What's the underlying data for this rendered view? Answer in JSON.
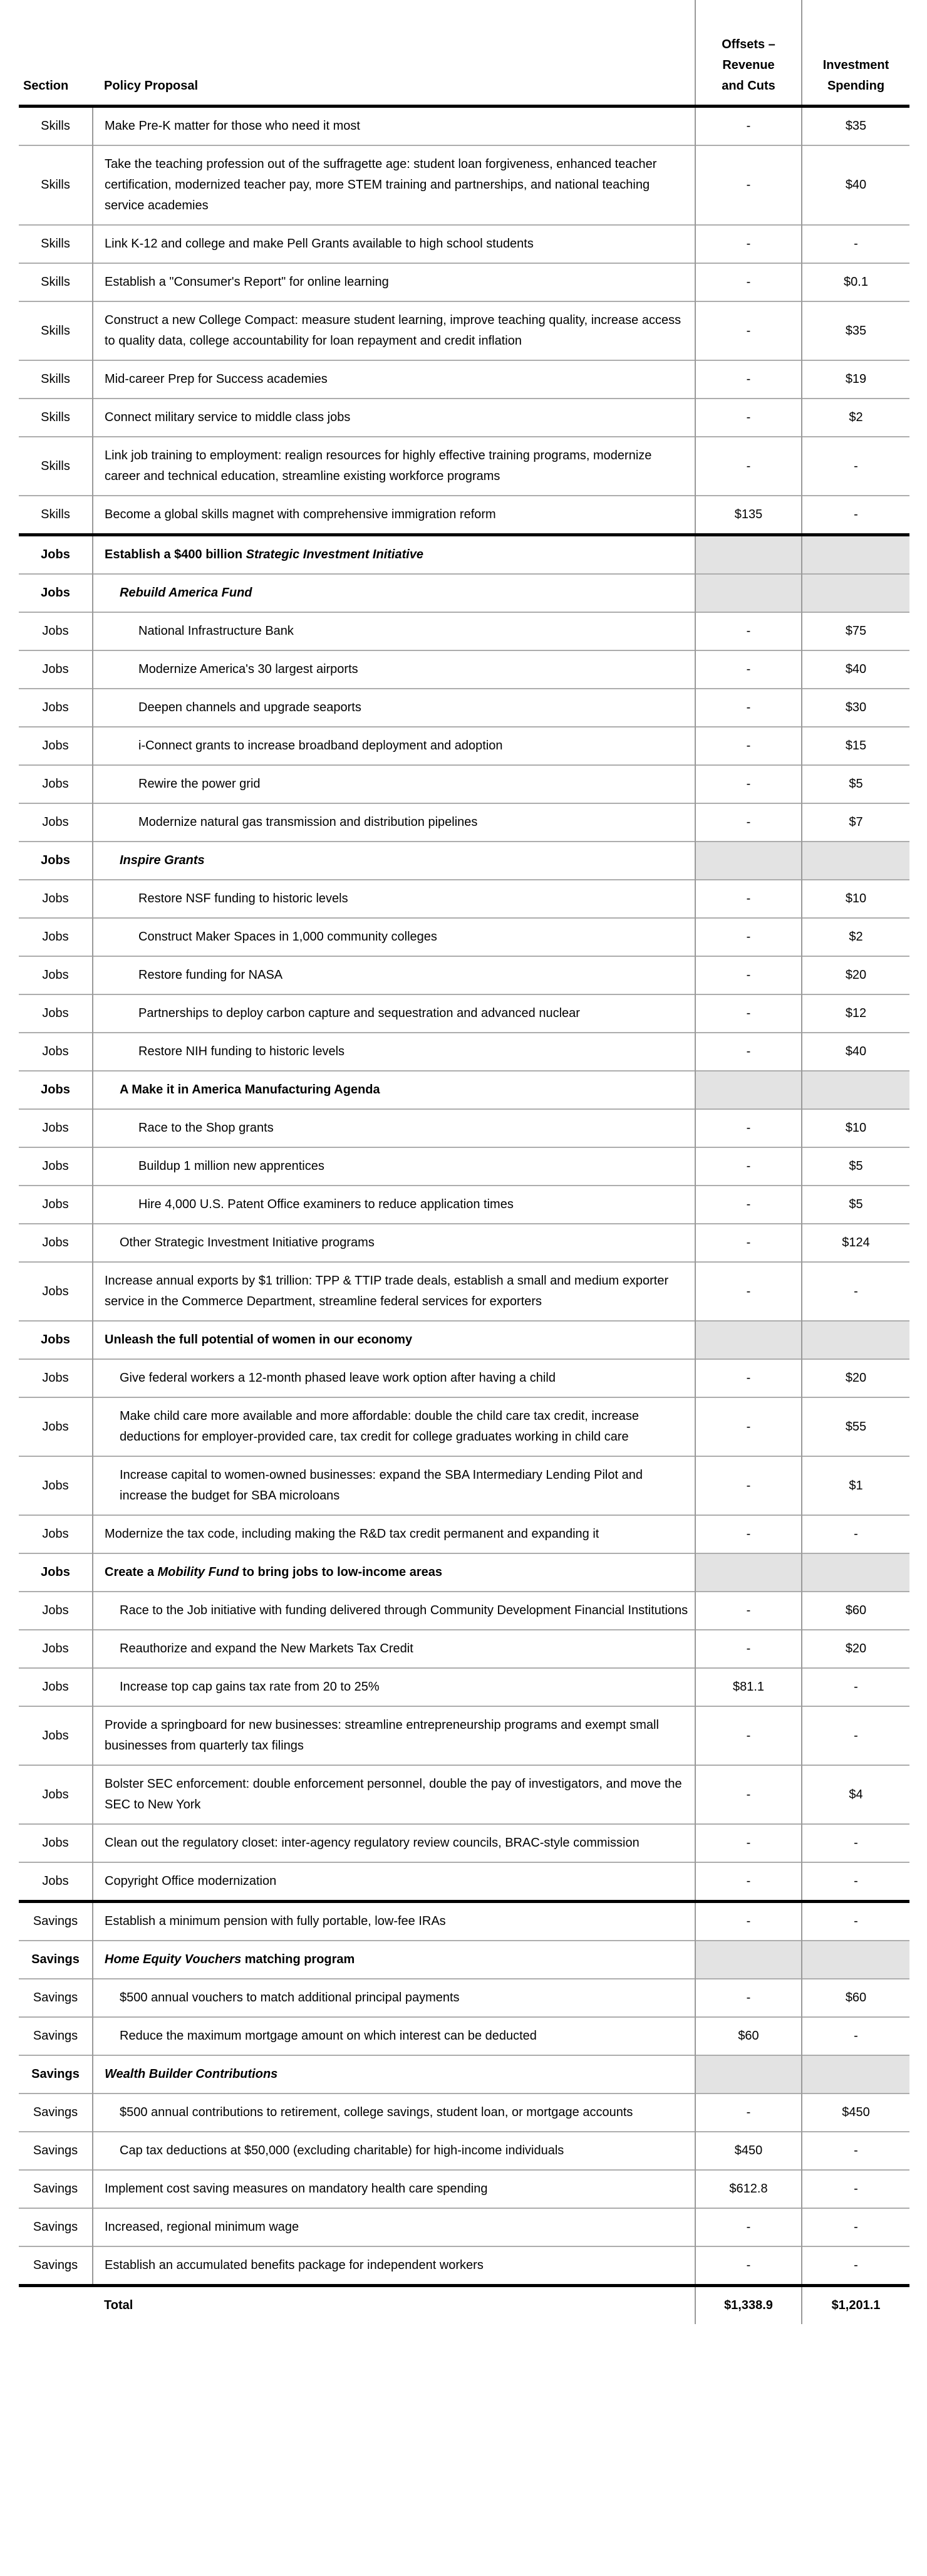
{
  "colors": {
    "section_divider": "#000000",
    "row_divider": "#adadad",
    "column_divider": "#999999",
    "shaded_cell": "#e3e3e3",
    "text": "#000000",
    "background": "#ffffff"
  },
  "table": {
    "header": {
      "section": "Section",
      "proposal": "Policy Proposal",
      "offsets": "Offsets –\nRevenue\nand Cuts",
      "investment": "Investment\nSpending"
    },
    "rows": [
      {
        "sec": "Skills",
        "p": [
          {
            "t": "Make Pre-K matter for those who need it most"
          }
        ],
        "off": "-",
        "inv": "$35",
        "ind": 0
      },
      {
        "sec": "Skills",
        "p": [
          {
            "t": "Take the teaching profession out of the suffragette age: student loan forgiveness, enhanced teacher certification, modernized teacher pay, more STEM training and partnerships, and national teaching service academies"
          }
        ],
        "off": "-",
        "inv": "$40",
        "ind": 0
      },
      {
        "sec": "Skills",
        "p": [
          {
            "t": "Link K-12 and college and make Pell Grants available to high school students"
          }
        ],
        "off": "-",
        "inv": "-",
        "ind": 0
      },
      {
        "sec": "Skills",
        "p": [
          {
            "t": "Establish a \"Consumer's Report\" for online learning"
          }
        ],
        "off": "-",
        "inv": "$0.1",
        "ind": 0
      },
      {
        "sec": "Skills",
        "p": [
          {
            "t": "Construct a new College Compact: measure student learning, improve teaching quality, increase access to quality data, college accountability for loan repayment and credit inflation"
          }
        ],
        "off": "-",
        "inv": "$35",
        "ind": 0
      },
      {
        "sec": "Skills",
        "p": [
          {
            "t": "Mid-career Prep for Success academies"
          }
        ],
        "off": "-",
        "inv": "$19",
        "ind": 0
      },
      {
        "sec": "Skills",
        "p": [
          {
            "t": "Connect military service to middle class jobs"
          }
        ],
        "off": "-",
        "inv": "$2",
        "ind": 0
      },
      {
        "sec": "Skills",
        "p": [
          {
            "t": "Link job training to employment: realign resources for highly effective training programs, modernize career and technical education, streamline existing workforce programs"
          }
        ],
        "off": "-",
        "inv": "-",
        "ind": 0
      },
      {
        "sec": "Skills",
        "p": [
          {
            "t": "Become a global skills magnet with comprehensive immigration reform"
          }
        ],
        "off": "$135",
        "inv": "-",
        "ind": 0
      },
      {
        "sec": "Jobs",
        "p": [
          {
            "t": "Establish a $400 billion "
          },
          {
            "t": "Strategic Investment Initiative",
            "i": true
          }
        ],
        "off": "",
        "inv": "",
        "ind": 0,
        "b": true,
        "g": true,
        "s": true
      },
      {
        "sec": "Jobs",
        "p": [
          {
            "t": "Rebuild America Fund",
            "i": true
          }
        ],
        "off": "",
        "inv": "",
        "ind": 1,
        "b": true,
        "g": true
      },
      {
        "sec": "Jobs",
        "p": [
          {
            "t": "National Infrastructure Bank"
          }
        ],
        "off": "-",
        "inv": "$75",
        "ind": 2
      },
      {
        "sec": "Jobs",
        "p": [
          {
            "t": "Modernize America's 30 largest airports"
          }
        ],
        "off": "-",
        "inv": "$40",
        "ind": 2
      },
      {
        "sec": "Jobs",
        "p": [
          {
            "t": "Deepen channels and upgrade seaports"
          }
        ],
        "off": "-",
        "inv": "$30",
        "ind": 2
      },
      {
        "sec": "Jobs",
        "p": [
          {
            "t": "i-Connect grants to increase broadband deployment and adoption"
          }
        ],
        "off": "-",
        "inv": "$15",
        "ind": 2
      },
      {
        "sec": "Jobs",
        "p": [
          {
            "t": "Rewire the power grid"
          }
        ],
        "off": "-",
        "inv": "$5",
        "ind": 2
      },
      {
        "sec": "Jobs",
        "p": [
          {
            "t": "Modernize natural gas transmission and distribution pipelines"
          }
        ],
        "off": "-",
        "inv": "$7",
        "ind": 2
      },
      {
        "sec": "Jobs",
        "p": [
          {
            "t": "Inspire Grants",
            "i": true
          }
        ],
        "off": "",
        "inv": "",
        "ind": 1,
        "b": true,
        "g": true
      },
      {
        "sec": "Jobs",
        "p": [
          {
            "t": "Restore NSF funding to historic levels"
          }
        ],
        "off": "-",
        "inv": "$10",
        "ind": 2
      },
      {
        "sec": "Jobs",
        "p": [
          {
            "t": "Construct Maker Spaces in 1,000 community colleges"
          }
        ],
        "off": "-",
        "inv": "$2",
        "ind": 2
      },
      {
        "sec": "Jobs",
        "p": [
          {
            "t": "Restore funding for NASA"
          }
        ],
        "off": "-",
        "inv": "$20",
        "ind": 2
      },
      {
        "sec": "Jobs",
        "p": [
          {
            "t": "Partnerships to deploy carbon capture and sequestration and advanced nuclear"
          }
        ],
        "off": "-",
        "inv": "$12",
        "ind": 2
      },
      {
        "sec": "Jobs",
        "p": [
          {
            "t": "Restore NIH funding to historic levels"
          }
        ],
        "off": "-",
        "inv": "$40",
        "ind": 2
      },
      {
        "sec": "Jobs",
        "p": [
          {
            "t": "A Make it in America Manufacturing Agenda"
          }
        ],
        "off": "",
        "inv": "",
        "ind": 1,
        "b": true,
        "g": true
      },
      {
        "sec": "Jobs",
        "p": [
          {
            "t": "Race to the Shop grants"
          }
        ],
        "off": "-",
        "inv": "$10",
        "ind": 2
      },
      {
        "sec": "Jobs",
        "p": [
          {
            "t": "Buildup 1 million new apprentices"
          }
        ],
        "off": "-",
        "inv": "$5",
        "ind": 2
      },
      {
        "sec": "Jobs",
        "p": [
          {
            "t": "Hire 4,000 U.S. Patent Office examiners to reduce application times"
          }
        ],
        "off": "-",
        "inv": "$5",
        "ind": 2
      },
      {
        "sec": "Jobs",
        "p": [
          {
            "t": "Other Strategic Investment Initiative programs"
          }
        ],
        "off": "-",
        "inv": "$124",
        "ind": 1
      },
      {
        "sec": "Jobs",
        "p": [
          {
            "t": "Increase annual exports by $1 trillion: TPP & TTIP trade deals, establish a small and medium exporter service in the Commerce Department, streamline federal services for exporters"
          }
        ],
        "off": "-",
        "inv": "-",
        "ind": 0
      },
      {
        "sec": "Jobs",
        "p": [
          {
            "t": "Unleash the full potential of women in our economy"
          }
        ],
        "off": "",
        "inv": "",
        "ind": 0,
        "b": true,
        "g": true
      },
      {
        "sec": "Jobs",
        "p": [
          {
            "t": "Give federal workers a 12-month phased leave work option after having a child"
          }
        ],
        "off": "-",
        "inv": "$20",
        "ind": 1
      },
      {
        "sec": "Jobs",
        "p": [
          {
            "t": "Make child care more available and more affordable: double the child care tax credit, increase deductions for employer-provided care, tax credit for college graduates working in child care"
          }
        ],
        "off": "-",
        "inv": "$55",
        "ind": 1
      },
      {
        "sec": "Jobs",
        "p": [
          {
            "t": "Increase capital to women-owned businesses: expand the SBA Intermediary Lending Pilot and increase the budget for SBA microloans"
          }
        ],
        "off": "-",
        "inv": "$1",
        "ind": 1
      },
      {
        "sec": "Jobs",
        "p": [
          {
            "t": "Modernize the tax code, including making the R&D tax credit permanent and expanding it"
          }
        ],
        "off": "-",
        "inv": "-",
        "ind": 0
      },
      {
        "sec": "Jobs",
        "p": [
          {
            "t": "Create a "
          },
          {
            "t": "Mobility Fund",
            "i": true
          },
          {
            "t": " to bring jobs to low-income areas"
          }
        ],
        "off": "",
        "inv": "",
        "ind": 0,
        "b": true,
        "g": true
      },
      {
        "sec": "Jobs",
        "p": [
          {
            "t": "Race to the Job initiative with funding delivered through  Community Development Financial Institutions"
          }
        ],
        "off": "-",
        "inv": "$60",
        "ind": 1
      },
      {
        "sec": "Jobs",
        "p": [
          {
            "t": "Reauthorize and expand the New Markets Tax Credit"
          }
        ],
        "off": "-",
        "inv": "$20",
        "ind": 1
      },
      {
        "sec": "Jobs",
        "p": [
          {
            "t": "Increase top cap gains tax rate from 20 to 25%"
          }
        ],
        "off": "$81.1",
        "inv": "-",
        "ind": 1
      },
      {
        "sec": "Jobs",
        "p": [
          {
            "t": "Provide a springboard for new businesses: streamline entrepreneurship programs and exempt small businesses from quarterly tax filings"
          }
        ],
        "off": "-",
        "inv": "-",
        "ind": 0
      },
      {
        "sec": "Jobs",
        "p": [
          {
            "t": "Bolster SEC enforcement: double enforcement personnel, double the pay of investigators, and move the SEC to New York"
          }
        ],
        "off": "-",
        "inv": "$4",
        "ind": 0
      },
      {
        "sec": "Jobs",
        "p": [
          {
            "t": "Clean out the regulatory closet: inter-agency regulatory review councils, BRAC-style commission"
          }
        ],
        "off": "-",
        "inv": "-",
        "ind": 0
      },
      {
        "sec": "Jobs",
        "p": [
          {
            "t": "Copyright Office modernization"
          }
        ],
        "off": "-",
        "inv": "-",
        "ind": 0
      },
      {
        "sec": "Savings",
        "p": [
          {
            "t": "Establish a minimum pension with fully portable, low-fee IRAs"
          }
        ],
        "off": "-",
        "inv": "-",
        "ind": 0,
        "s": true
      },
      {
        "sec": "Savings",
        "p": [
          {
            "t": "Home Equity Vouchers",
            "i": true
          },
          {
            "t": " matching program"
          }
        ],
        "off": "",
        "inv": "",
        "ind": 0,
        "b": true,
        "g": true
      },
      {
        "sec": "Savings",
        "p": [
          {
            "t": "$500 annual vouchers to match additional principal payments"
          }
        ],
        "off": "-",
        "inv": "$60",
        "ind": 1
      },
      {
        "sec": "Savings",
        "p": [
          {
            "t": "Reduce the maximum mortgage amount on which interest can be deducted"
          }
        ],
        "off": "$60",
        "inv": "-",
        "ind": 1
      },
      {
        "sec": "Savings",
        "p": [
          {
            "t": "Wealth Builder Contributions",
            "i": true
          }
        ],
        "off": "",
        "inv": "",
        "ind": 0,
        "b": true,
        "g": true
      },
      {
        "sec": "Savings",
        "p": [
          {
            "t": "$500 annual contributions to retirement, college savings, student loan, or mortgage accounts"
          }
        ],
        "off": "-",
        "inv": "$450",
        "ind": 1
      },
      {
        "sec": "Savings",
        "p": [
          {
            "t": "Cap tax deductions at $50,000 (excluding charitable) for high-income individuals"
          }
        ],
        "off": "$450",
        "inv": "-",
        "ind": 1
      },
      {
        "sec": "Savings",
        "p": [
          {
            "t": "Implement cost saving measures on mandatory health care spending"
          }
        ],
        "off": "$612.8",
        "inv": "-",
        "ind": 0
      },
      {
        "sec": "Savings",
        "p": [
          {
            "t": "Increased, regional minimum wage"
          }
        ],
        "off": "-",
        "inv": "-",
        "ind": 0
      },
      {
        "sec": "Savings",
        "p": [
          {
            "t": "Establish an accumulated benefits package for independent workers"
          }
        ],
        "off": "-",
        "inv": "-",
        "ind": 0
      },
      {
        "sec": "",
        "p": [
          {
            "t": "Total"
          }
        ],
        "off": "$1,338.9",
        "inv": "$1,201.1",
        "ind": 0,
        "b": true,
        "s": true,
        "total": true
      }
    ]
  }
}
